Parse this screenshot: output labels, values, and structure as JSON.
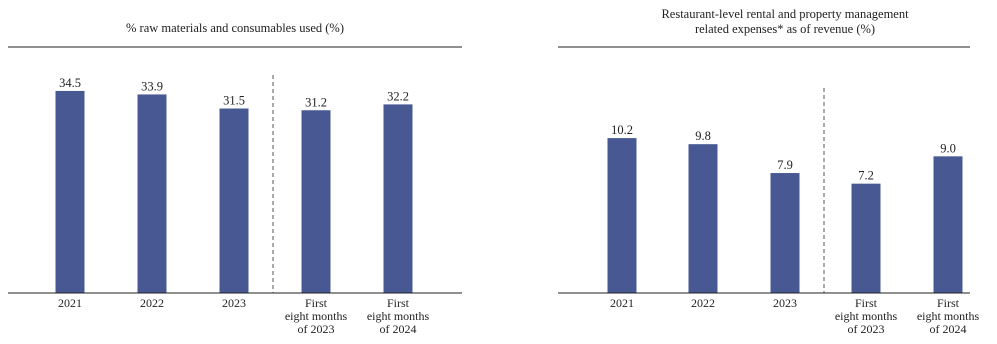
{
  "chart_data": [
    {
      "type": "bar",
      "title_lines": [
        "% raw materials and consumables used (%)"
      ],
      "categories": [
        [
          "2021"
        ],
        [
          "2022"
        ],
        [
          "2023"
        ],
        [
          "First",
          "eight months",
          "of 2023"
        ],
        [
          "First",
          "eight months",
          "of 2024"
        ]
      ],
      "values": [
        34.5,
        33.9,
        31.5,
        31.2,
        32.2
      ],
      "value_labels": [
        "34.5",
        "33.9",
        "31.5",
        "31.2",
        "32.2"
      ],
      "ylim": [
        0,
        35
      ],
      "grid": false,
      "divider_after_index": 2
    },
    {
      "type": "bar",
      "title_lines": [
        "Restaurant-level rental and property management",
        "related expenses* as of revenue (%)"
      ],
      "categories": [
        [
          "2021"
        ],
        [
          "2022"
        ],
        [
          "2023"
        ],
        [
          "First",
          "eight months",
          "of 2023"
        ],
        [
          "First",
          "eight months",
          "of 2024"
        ]
      ],
      "values": [
        10.2,
        9.8,
        7.9,
        7.2,
        9.0
      ],
      "value_labels": [
        "10.2",
        "9.8",
        "7.9",
        "7.2",
        "9.0"
      ],
      "ylim": [
        0,
        13.5
      ],
      "grid": false,
      "divider_after_index": 2
    }
  ],
  "colors": {
    "bar": "#475893",
    "axis": "#222222",
    "divider": "#555555",
    "text": "#222222"
  }
}
